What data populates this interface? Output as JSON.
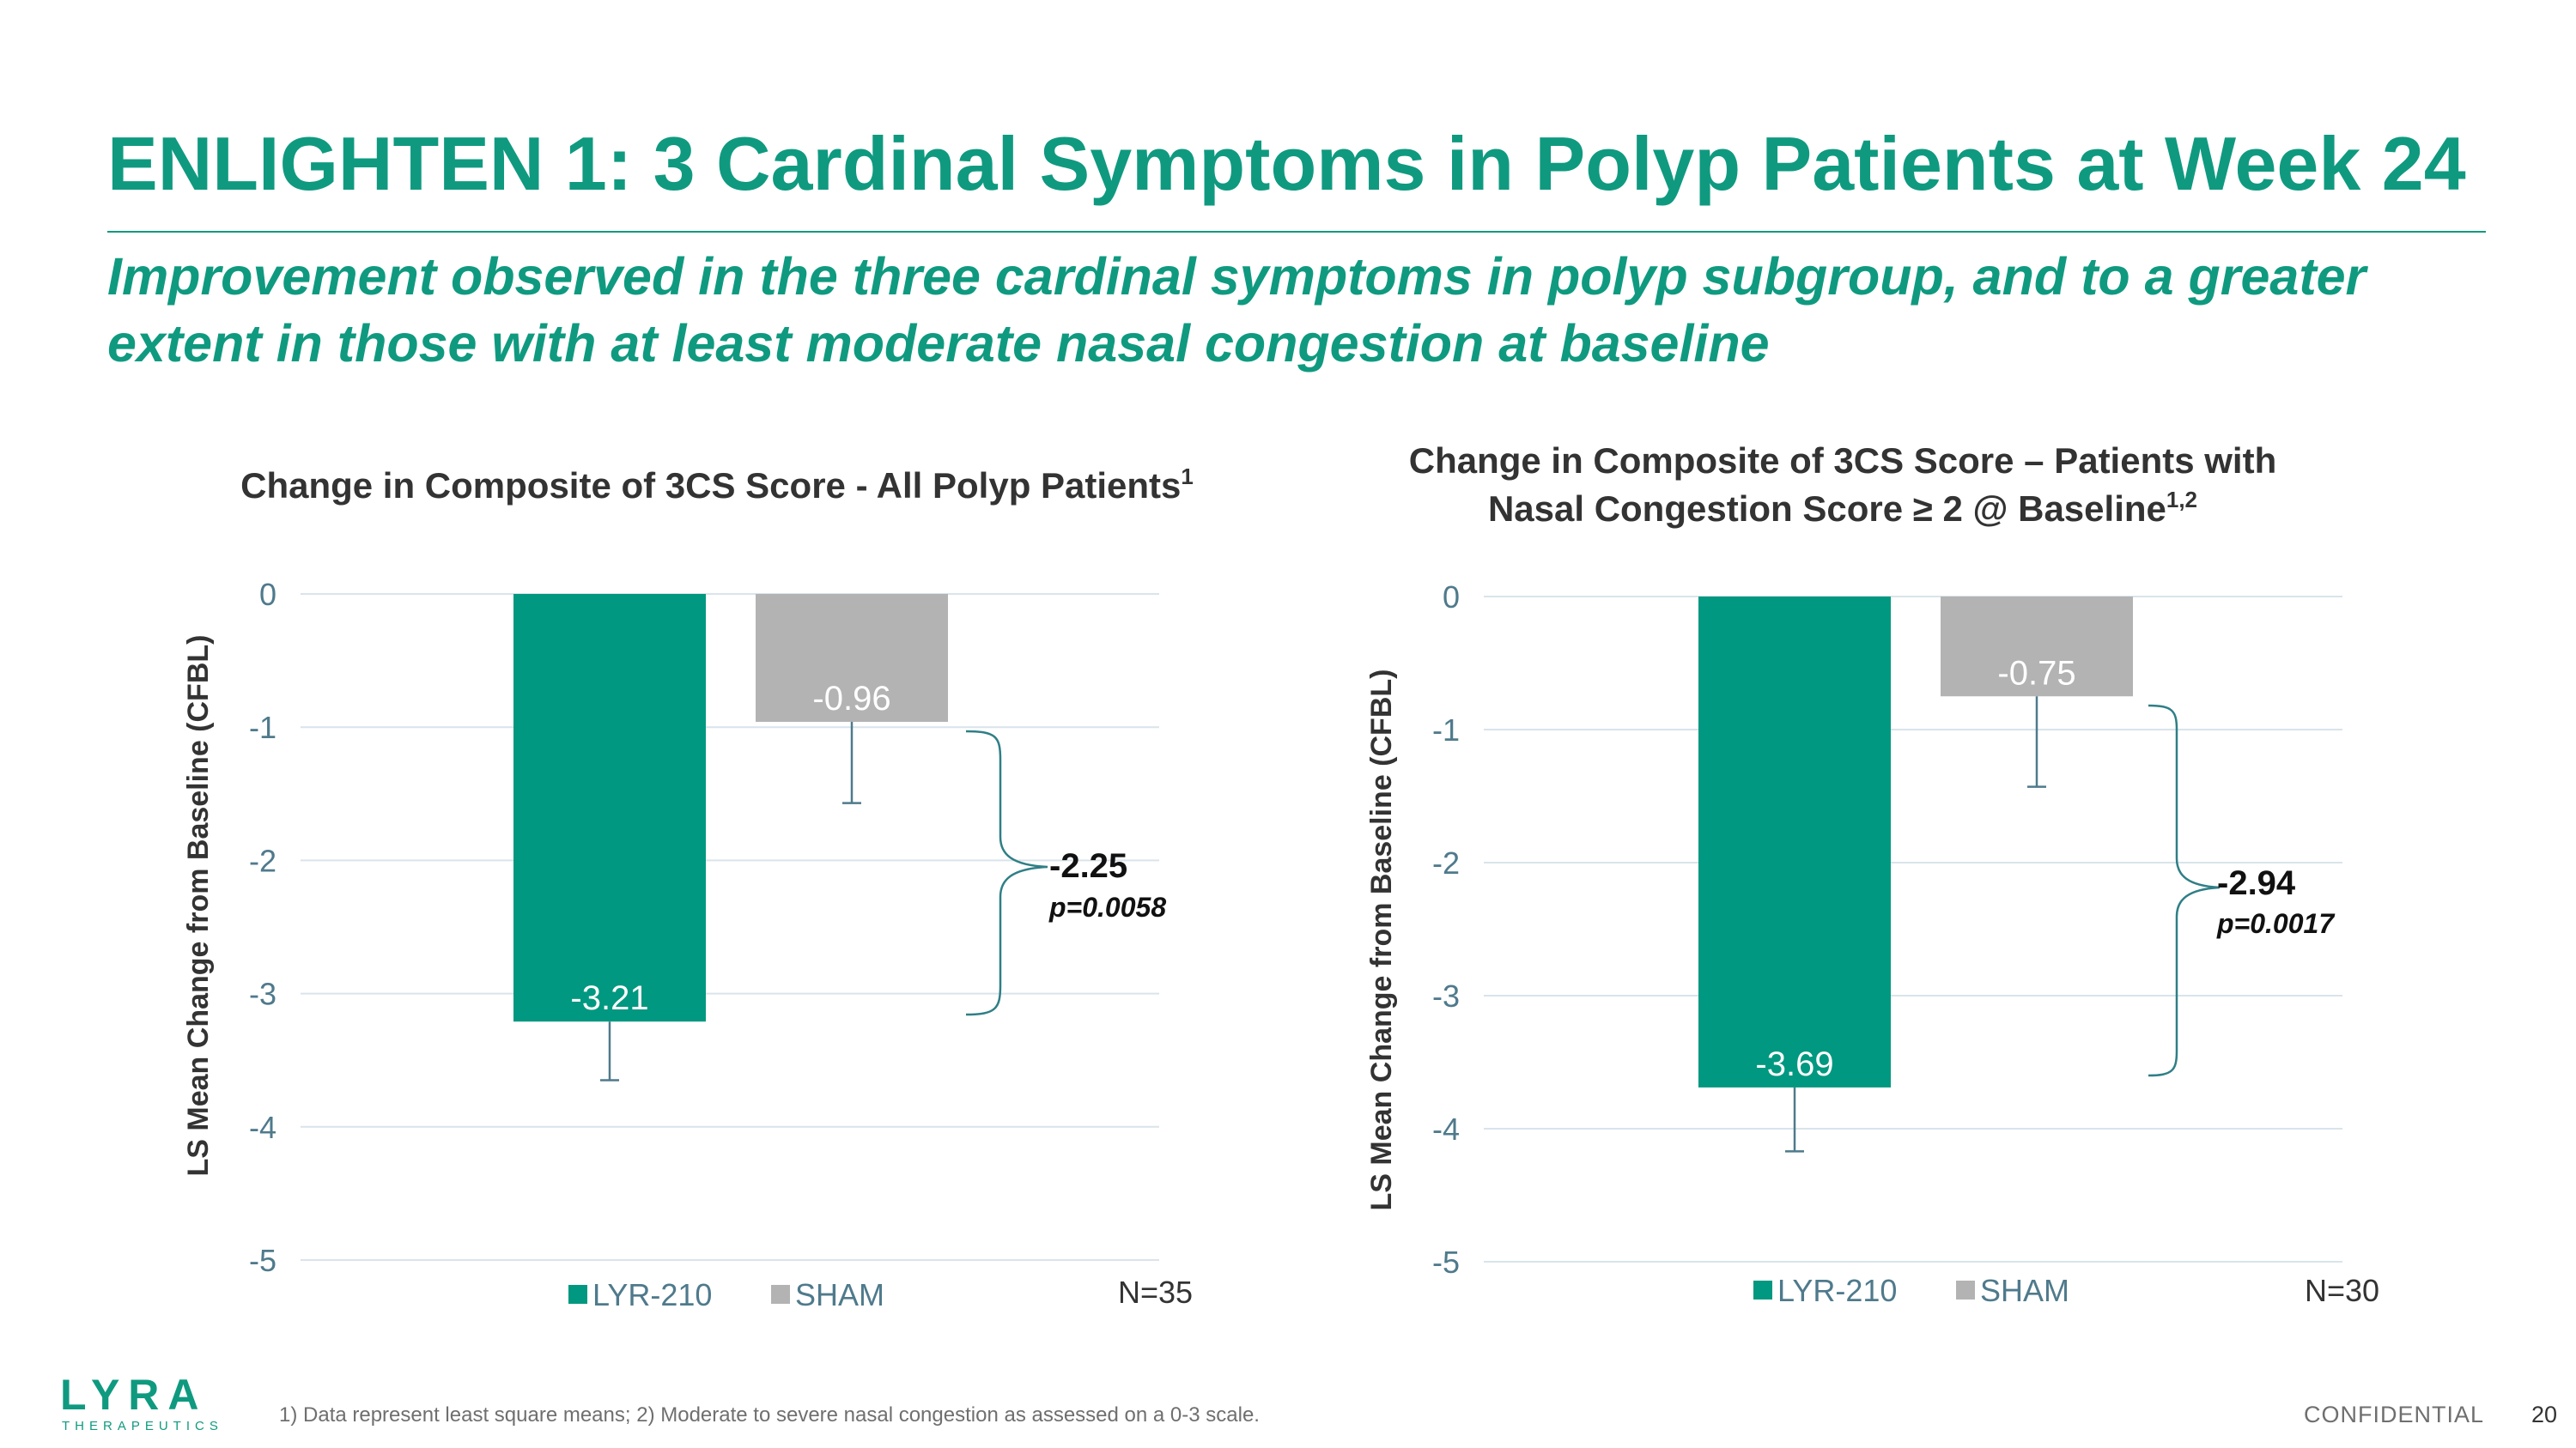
{
  "slide": {
    "title": "ENLIGHTEN 1:  3 Cardinal Symptoms in Polyp Patients at Week 24",
    "subtitle": "Improvement observed in the three cardinal symptoms in polyp subgroup, and to a greater extent in those with at least moderate nasal congestion at baseline"
  },
  "chart_data": [
    {
      "type": "bar",
      "title": "Change in Composite of 3CS Score - All Polyp Patients",
      "title_sup": "1",
      "ylabel": "LS Mean Change from Baseline (CFBL)",
      "xlabel": "",
      "ylim": [
        -5,
        0
      ],
      "yticks": [
        0,
        -1,
        -2,
        -3,
        -4,
        -5
      ],
      "grid": true,
      "categories": [
        "LYR-210",
        "SHAM"
      ],
      "values": [
        -3.21,
        -0.96
      ],
      "value_labels": [
        "-3.21",
        "-0.96"
      ],
      "error_lower": [
        -3.65,
        -1.57
      ],
      "colors": [
        "#009880",
        "#b3b3b3"
      ],
      "legend": [
        "LYR-210",
        "SHAM"
      ],
      "n_label": "N=35",
      "difference": "-2.25",
      "p_value": "p=0.0058"
    },
    {
      "type": "bar",
      "title": "Change in Composite of 3CS Score – Patients with Nasal Congestion Score ≥ 2 @ Baseline",
      "title_line1": "Change in Composite of 3CS Score – Patients with",
      "title_line2": "Nasal Congestion Score ≥ 2 @ Baseline",
      "title_sup": "1,2",
      "ylabel": "LS Mean Change from Baseline (CFBL)",
      "xlabel": "",
      "ylim": [
        -5,
        0
      ],
      "yticks": [
        0,
        -1,
        -2,
        -3,
        -4,
        -5
      ],
      "grid": true,
      "categories": [
        "LYR-210",
        "SHAM"
      ],
      "values": [
        -3.69,
        -0.75
      ],
      "value_labels": [
        "-3.69",
        "-0.75"
      ],
      "error_lower": [
        -4.17,
        -1.43
      ],
      "colors": [
        "#009880",
        "#b3b3b3"
      ],
      "legend": [
        "LYR-210",
        "SHAM"
      ],
      "n_label": "N=30",
      "difference": "-2.94",
      "p_value": "p=0.0017"
    }
  ],
  "footer": {
    "logo_text": "LYRA",
    "logo_subtext": "THERAPEUTICS",
    "footnote": "1) Data represent least square means; 2) Moderate to severe nasal congestion as assessed on a 0-3 scale.",
    "confidential": "CONFIDENTIAL",
    "page_number": "20"
  }
}
